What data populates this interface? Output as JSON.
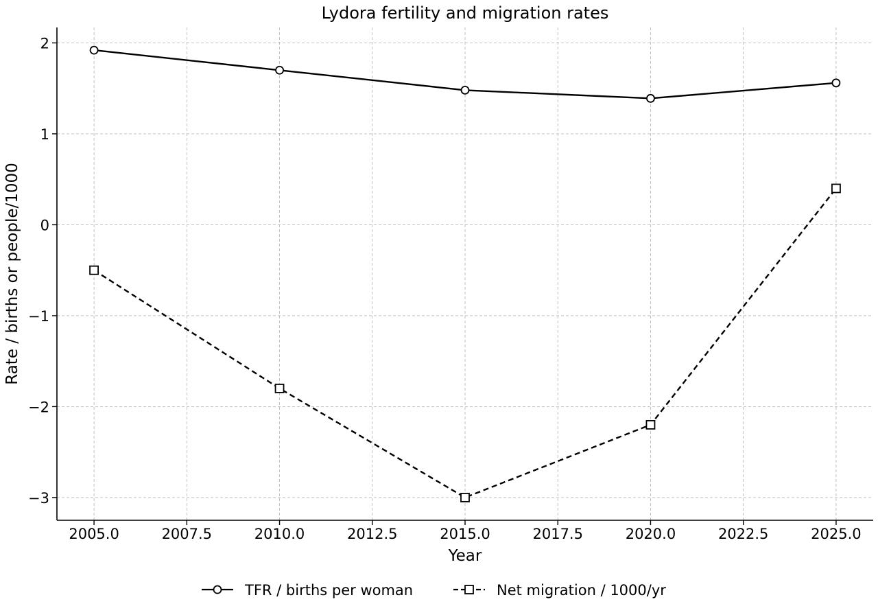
{
  "chart_data": {
    "type": "line",
    "title": "Lydora fertility and migration rates",
    "xlabel": "Year",
    "ylabel": "Rate / births or people/1000",
    "xlim": [
      2004,
      2026
    ],
    "ylim": [
      -3.25,
      2.17
    ],
    "xticks": [
      2005.0,
      2007.5,
      2010.0,
      2012.5,
      2015.0,
      2017.5,
      2020.0,
      2022.5,
      2025.0
    ],
    "xtick_labels": [
      "2005.0",
      "2007.5",
      "2010.0",
      "2012.5",
      "2015.0",
      "2017.5",
      "2020.0",
      "2022.5",
      "2025.0"
    ],
    "yticks": [
      -3,
      -2,
      -1,
      0,
      1,
      2
    ],
    "ytick_labels": [
      "−3",
      "−2",
      "−1",
      "0",
      "1",
      "2"
    ],
    "grid": true,
    "legend_position": "bottom-center",
    "x": [
      2005,
      2010,
      2015,
      2020,
      2025
    ],
    "series": [
      {
        "name": "TFR / births per woman",
        "values": [
          1.92,
          1.7,
          1.48,
          1.39,
          1.56
        ],
        "line_style": "solid",
        "marker": "circle",
        "color": "#000000"
      },
      {
        "name": "Net migration / 1000/yr",
        "values": [
          -0.5,
          -1.8,
          -3.0,
          -2.2,
          0.4
        ],
        "line_style": "dashed",
        "marker": "square",
        "color": "#000000"
      }
    ]
  }
}
